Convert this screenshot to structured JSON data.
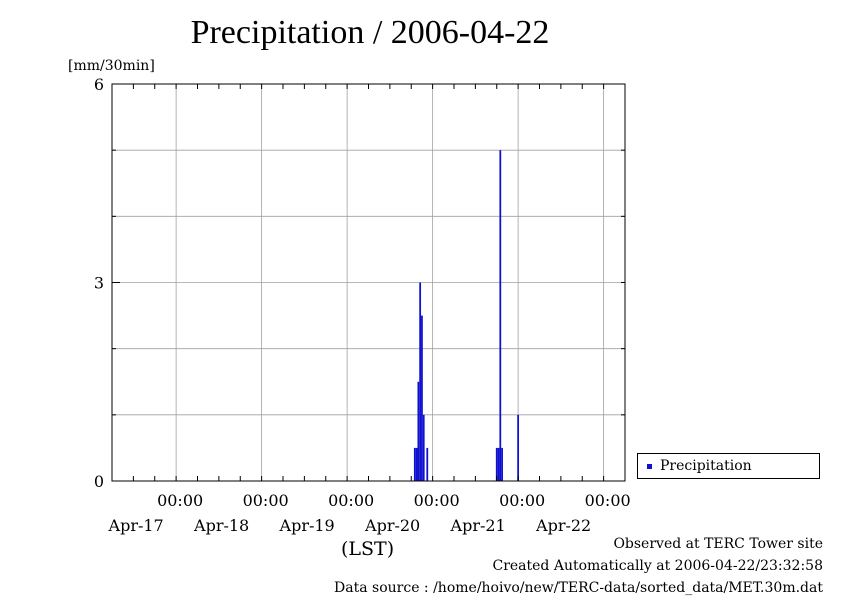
{
  "chart_data": {
    "type": "bar",
    "title": "Precipitation / 2006-04-22",
    "ylabel": "[mm/30min]",
    "xlabel": "(LST)",
    "ylim": [
      0,
      6
    ],
    "yticks": [
      0,
      3,
      6
    ],
    "xlim": [
      "2006-04-16 06:00",
      "2006-04-22 06:00"
    ],
    "xticks": [
      {
        "time": "00:00",
        "date": "Apr-17"
      },
      {
        "time": "00:00",
        "date": "Apr-18"
      },
      {
        "time": "00:00",
        "date": "Apr-19"
      },
      {
        "time": "00:00",
        "date": "Apr-20"
      },
      {
        "time": "00:00",
        "date": "Apr-21"
      },
      {
        "time": "00:00",
        "date": "Apr-22"
      }
    ],
    "grid": true,
    "legend_position": "right",
    "series": [
      {
        "name": "Precipitation",
        "color": "#1010d0",
        "points": [
          {
            "t": "2006-04-19 19:00",
            "v": 0.5
          },
          {
            "t": "2006-04-19 19:30",
            "v": 0.5
          },
          {
            "t": "2006-04-19 20:00",
            "v": 1.5
          },
          {
            "t": "2006-04-19 20:30",
            "v": 3.0
          },
          {
            "t": "2006-04-19 21:00",
            "v": 2.5
          },
          {
            "t": "2006-04-19 21:30",
            "v": 1.0
          },
          {
            "t": "2006-04-19 22:30",
            "v": 0.5
          },
          {
            "t": "2006-04-20 18:00",
            "v": 0.5
          },
          {
            "t": "2006-04-20 18:30",
            "v": 0.5
          },
          {
            "t": "2006-04-20 19:00",
            "v": 5.0
          },
          {
            "t": "2006-04-20 19:30",
            "v": 0.5
          },
          {
            "t": "2006-04-21 00:00",
            "v": 1.0
          }
        ]
      }
    ]
  },
  "legend": {
    "label": "Precipitation"
  },
  "footer": {
    "line1": "Observed at TERC Tower site",
    "line2": "Created Automatically at 2006-04-22/23:32:58",
    "line3": "Data source : /home/hoivo/new/TERC-data/sorted_data/MET.30m.dat"
  }
}
